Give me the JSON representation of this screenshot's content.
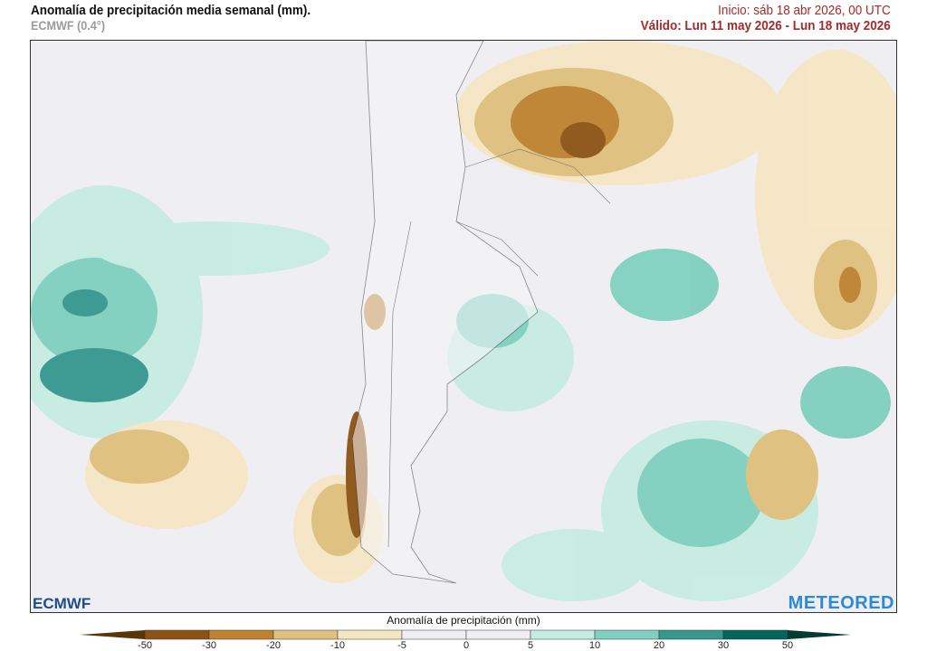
{
  "header": {
    "title": "Anomalía de precipitación media semanal (mm).",
    "model": "ECMWF (0.4°)",
    "start": "Inicio:  sáb 18 abr 2026, 00 UTC",
    "valid": "Válido: Lun 11 may 2026 - Lun 18 may 2026"
  },
  "logos": {
    "left": "ECMWF",
    "right": "METEORED"
  },
  "colorbar": {
    "title": "Anomalía de precipitación (mm)",
    "ticks": [
      "-50",
      "-30",
      "-20",
      "-10",
      "-5",
      "0",
      "5",
      "10",
      "20",
      "30",
      "50"
    ],
    "colors": [
      "#5a3508",
      "#8c5314",
      "#bf8230",
      "#dfc07c",
      "#f5e6c4",
      "#efeef3",
      "#efeef3",
      "#c6ebe2",
      "#7fd0c0",
      "#35978f",
      "#01665e",
      "#003c30"
    ]
  }
}
